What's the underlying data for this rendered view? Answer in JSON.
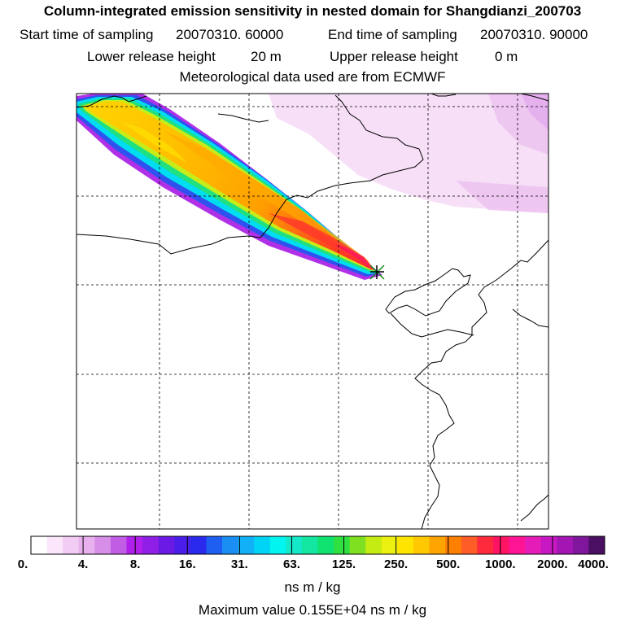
{
  "header": {
    "title": "Column-integrated emission sensitivity in nested domain for Shangdianzi_200703",
    "start_label": "Start time of sampling",
    "start_value": "20070310. 60000",
    "end_label": "End time of sampling",
    "end_value": "20070310. 90000",
    "lower_label": "Lower release height",
    "lower_value": "20 m",
    "upper_label": "Upper release height",
    "upper_value": "0 m",
    "met_text": "Meteorological data used are from ECMWF"
  },
  "legend": {
    "colors": [
      "#ffffff",
      "#fbe6fb",
      "#f3ccf3",
      "#e9b0ef",
      "#d68ee8",
      "#c15ce4",
      "#b020ea",
      "#8f1fe6",
      "#6a1ae4",
      "#4a1ee8",
      "#2a2aee",
      "#1e5ef0",
      "#1b8ef3",
      "#12b0f6",
      "#00d4f6",
      "#00f5f0",
      "#14e8c8",
      "#12e6a0",
      "#10e270",
      "#30e040",
      "#7ee020",
      "#c4ec12",
      "#ecf010",
      "#ffe400",
      "#ffc800",
      "#ffa400",
      "#ff8000",
      "#ff5c28",
      "#ff2a3c",
      "#ff1464",
      "#ff1496",
      "#e61cb8",
      "#c818c4",
      "#a416b4",
      "#80169c",
      "#4a0e62"
    ],
    "labels": [
      "0.",
      "4.",
      "8.",
      "16.",
      "31.",
      "63.",
      "125.",
      "250.",
      "500.",
      "1000.",
      "2000.",
      "4000."
    ],
    "units": "ns m / kg"
  },
  "footer": {
    "max_text": "Maximum value  0.155E+04 ns m / kg"
  },
  "receptor": {
    "name": "Shangdianzi",
    "marker": "receptor-x-icon"
  }
}
